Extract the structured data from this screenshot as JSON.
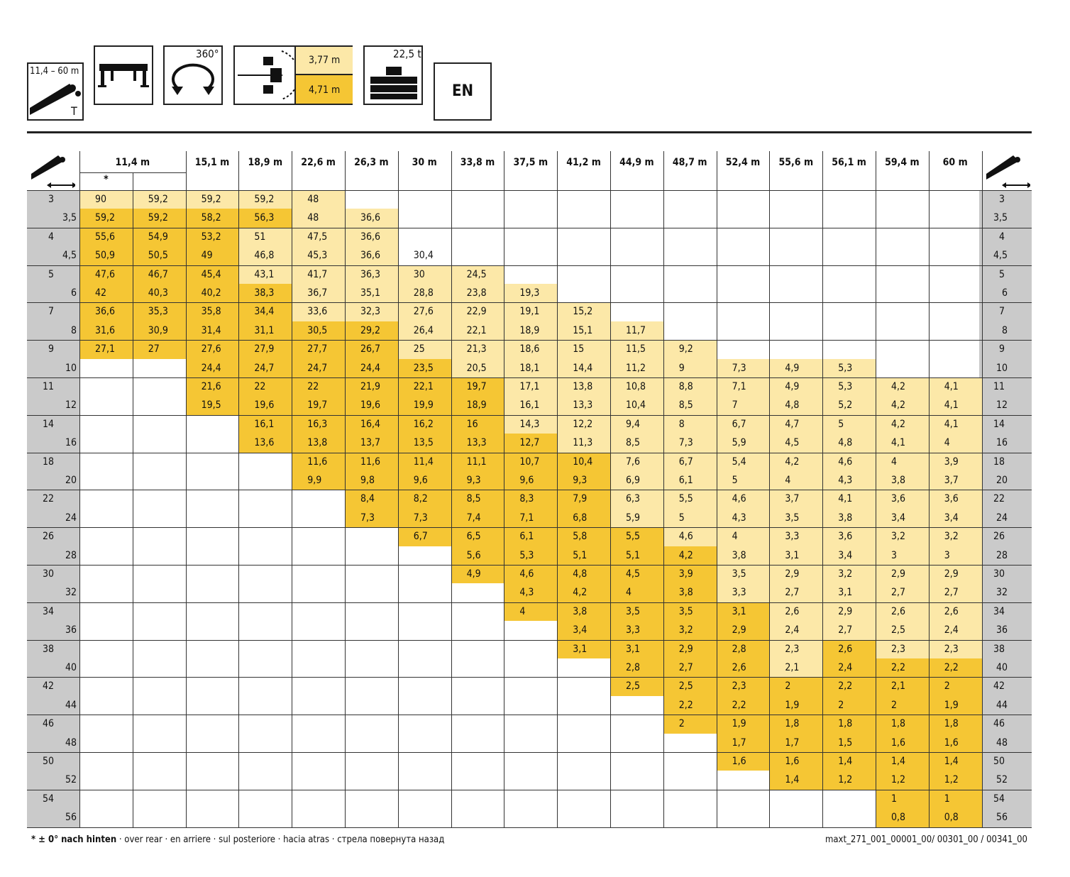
{
  "header_icons": {
    "boom_range": "11,4 – 60 m",
    "boom_tag": "T",
    "slew": "360°",
    "counterweight_top": "3,77 m",
    "counterweight_bottom": "4,71 m",
    "ballast": "22,5 t",
    "language": "EN"
  },
  "colors": {
    "yellow": "#F5C634",
    "lightyellow": "#FCE8A8",
    "gray": "#CACACA"
  },
  "table": {
    "boom_lengths": [
      "11,4 m",
      "15,1 m",
      "18,9 m",
      "22,6 m",
      "26,3 m",
      "30 m",
      "33,8 m",
      "37,5 m",
      "41,2 m",
      "44,9 m",
      "48,7 m",
      "52,4 m",
      "55,6 m",
      "56,1 m",
      "59,4 m",
      "60 m"
    ],
    "star_note": "*",
    "radii": [
      "3",
      "3,5",
      "4",
      "4,5",
      "5",
      "6",
      "7",
      "8",
      "9",
      "10",
      "11",
      "12",
      "14",
      "16",
      "18",
      "20",
      "22",
      "24",
      "26",
      "28",
      "30",
      "32",
      "34",
      "36",
      "38",
      "40",
      "42",
      "44",
      "46",
      "48",
      "50",
      "52",
      "54",
      "56"
    ],
    "rows": [
      [
        "90",
        "59,2",
        "59,2",
        "59,2",
        "48",
        "",
        "",
        "",
        "",
        "",
        "",
        "",
        "",
        "",
        "",
        "",
        ""
      ],
      [
        "59,2",
        "59,2",
        "58,2",
        "56,3",
        "48",
        "36,6",
        "",
        "",
        "",
        "",
        "",
        "",
        "",
        "",
        "",
        "",
        ""
      ],
      [
        "55,6",
        "54,9",
        "53,2",
        "51",
        "47,5",
        "36,6",
        "",
        "",
        "",
        "",
        "",
        "",
        "",
        "",
        "",
        "",
        ""
      ],
      [
        "50,9",
        "50,5",
        "49",
        "46,8",
        "45,3",
        "36,6",
        "30,4",
        "",
        "",
        "",
        "",
        "",
        "",
        "",
        "",
        "",
        ""
      ],
      [
        "47,6",
        "46,7",
        "45,4",
        "43,1",
        "41,7",
        "36,3",
        "30",
        "24,5",
        "",
        "",
        "",
        "",
        "",
        "",
        "",
        "",
        ""
      ],
      [
        "42",
        "40,3",
        "40,2",
        "38,3",
        "36,7",
        "35,1",
        "28,8",
        "23,8",
        "19,3",
        "",
        "",
        "",
        "",
        "",
        "",
        "",
        ""
      ],
      [
        "36,6",
        "35,3",
        "35,8",
        "34,4",
        "33,6",
        "32,3",
        "27,6",
        "22,9",
        "19,1",
        "15,2",
        "",
        "",
        "",
        "",
        "",
        "",
        ""
      ],
      [
        "31,6",
        "30,9",
        "31,4",
        "31,1",
        "30,5",
        "29,2",
        "26,4",
        "22,1",
        "18,9",
        "15,1",
        "11,7",
        "",
        "",
        "",
        "",
        "",
        ""
      ],
      [
        "27,1",
        "27",
        "27,6",
        "27,9",
        "27,7",
        "26,7",
        "25",
        "21,3",
        "18,6",
        "15",
        "11,5",
        "9,2",
        "",
        "",
        "",
        "",
        ""
      ],
      [
        "",
        "",
        "24,4",
        "24,7",
        "24,7",
        "24,4",
        "23,5",
        "20,5",
        "18,1",
        "14,4",
        "11,2",
        "9",
        "7,3",
        "4,9",
        "5,3",
        "",
        ""
      ],
      [
        "",
        "",
        "21,6",
        "22",
        "22",
        "21,9",
        "22,1",
        "19,7",
        "17,1",
        "13,8",
        "10,8",
        "8,8",
        "7,1",
        "4,9",
        "5,3",
        "4,2",
        "4,1"
      ],
      [
        "",
        "",
        "19,5",
        "19,6",
        "19,7",
        "19,6",
        "19,9",
        "18,9",
        "16,1",
        "13,3",
        "10,4",
        "8,5",
        "7",
        "4,8",
        "5,2",
        "4,2",
        "4,1"
      ],
      [
        "",
        "",
        "",
        "16,1",
        "16,3",
        "16,4",
        "16,2",
        "16",
        "14,3",
        "12,2",
        "9,4",
        "8",
        "6,7",
        "4,7",
        "5",
        "4,2",
        "4,1"
      ],
      [
        "",
        "",
        "",
        "13,6",
        "13,8",
        "13,7",
        "13,5",
        "13,3",
        "12,7",
        "11,3",
        "8,5",
        "7,3",
        "5,9",
        "4,5",
        "4,8",
        "4,1",
        "4"
      ],
      [
        "",
        "",
        "",
        "",
        "11,6",
        "11,6",
        "11,4",
        "11,1",
        "10,7",
        "10,4",
        "7,6",
        "6,7",
        "5,4",
        "4,2",
        "4,6",
        "4",
        "3,9"
      ],
      [
        "",
        "",
        "",
        "",
        "9,9",
        "9,8",
        "9,6",
        "9,3",
        "9,6",
        "9,3",
        "6,9",
        "6,1",
        "5",
        "4",
        "4,3",
        "3,8",
        "3,7"
      ],
      [
        "",
        "",
        "",
        "",
        "",
        "8,4",
        "8,2",
        "8,5",
        "8,3",
        "7,9",
        "6,3",
        "5,5",
        "4,6",
        "3,7",
        "4,1",
        "3,6",
        "3,6"
      ],
      [
        "",
        "",
        "",
        "",
        "",
        "7,3",
        "7,3",
        "7,4",
        "7,1",
        "6,8",
        "5,9",
        "5",
        "4,3",
        "3,5",
        "3,8",
        "3,4",
        "3,4"
      ],
      [
        "",
        "",
        "",
        "",
        "",
        "",
        "6,7",
        "6,5",
        "6,1",
        "5,8",
        "5,5",
        "4,6",
        "4",
        "3,3",
        "3,6",
        "3,2",
        "3,2"
      ],
      [
        "",
        "",
        "",
        "",
        "",
        "",
        "",
        "5,6",
        "5,3",
        "5,1",
        "5,1",
        "4,2",
        "3,8",
        "3,1",
        "3,4",
        "3",
        "3"
      ],
      [
        "",
        "",
        "",
        "",
        "",
        "",
        "",
        "4,9",
        "4,6",
        "4,8",
        "4,5",
        "3,9",
        "3,5",
        "2,9",
        "3,2",
        "2,9",
        "2,9"
      ],
      [
        "",
        "",
        "",
        "",
        "",
        "",
        "",
        "",
        "4,3",
        "4,2",
        "4",
        "3,8",
        "3,3",
        "2,7",
        "3,1",
        "2,7",
        "2,7"
      ],
      [
        "",
        "",
        "",
        "",
        "",
        "",
        "",
        "",
        "4",
        "3,8",
        "3,5",
        "3,5",
        "3,1",
        "2,6",
        "2,9",
        "2,6",
        "2,6"
      ],
      [
        "",
        "",
        "",
        "",
        "",
        "",
        "",
        "",
        "",
        "3,4",
        "3,3",
        "3,2",
        "2,9",
        "2,4",
        "2,7",
        "2,5",
        "2,4"
      ],
      [
        "",
        "",
        "",
        "",
        "",
        "",
        "",
        "",
        "",
        "3,1",
        "3,1",
        "2,9",
        "2,8",
        "2,3",
        "2,6",
        "2,3",
        "2,3"
      ],
      [
        "",
        "",
        "",
        "",
        "",
        "",
        "",
        "",
        "",
        "",
        "2,8",
        "2,7",
        "2,6",
        "2,1",
        "2,4",
        "2,2",
        "2,2"
      ],
      [
        "",
        "",
        "",
        "",
        "",
        "",
        "",
        "",
        "",
        "",
        "2,5",
        "2,5",
        "2,3",
        "2",
        "2,2",
        "2,1",
        "2"
      ],
      [
        "",
        "",
        "",
        "",
        "",
        "",
        "",
        "",
        "",
        "",
        "",
        "2,2",
        "2,2",
        "1,9",
        "2",
        "2",
        "1,9"
      ],
      [
        "",
        "",
        "",
        "",
        "",
        "",
        "",
        "",
        "",
        "",
        "",
        "2",
        "1,9",
        "1,8",
        "1,8",
        "1,8",
        "1,8"
      ],
      [
        "",
        "",
        "",
        "",
        "",
        "",
        "",
        "",
        "",
        "",
        "",
        "",
        "1,7",
        "1,7",
        "1,5",
        "1,6",
        "1,6"
      ],
      [
        "",
        "",
        "",
        "",
        "",
        "",
        "",
        "",
        "",
        "",
        "",
        "",
        "1,6",
        "1,6",
        "1,4",
        "1,4",
        "1,4"
      ],
      [
        "",
        "",
        "",
        "",
        "",
        "",
        "",
        "",
        "",
        "",
        "",
        "",
        "",
        "1,4",
        "1,2",
        "1,2",
        "1,2"
      ],
      [
        "",
        "",
        "",
        "",
        "",
        "",
        "",
        "",
        "",
        "",
        "",
        "",
        "",
        "",
        "",
        "1",
        "1"
      ],
      [
        "",
        "",
        "",
        "",
        "",
        "",
        "",
        "",
        "",
        "",
        "",
        "",
        "",
        "",
        "",
        "0,8",
        "0,8"
      ]
    ],
    "shade": [
      "LLLLL............",
      "YYYYLL...........",
      "YYYLLL...........",
      "YYYLLL...........",
      "YYYLLLLL.........",
      "YYYYLLLLL........",
      "YYYYLLLLLL.......",
      "YYYYYYLLLLL......",
      "YYYYYYLLLLLL.....",
      "..YYYYYLLLLLLLL..",
      "..YYYYYYLLLLLLLLL",
      "..YYYYYYLLLLLLLLL",
      "...YYYYYLLLLLLLLL",
      "...YYYYYYLLLLLLLL",
      "....YYYYYYLLLLLLL",
      "....YYYYYYLLLLLLL",
      ".....YYYYYLLLLLLL",
      ".....YYYYYLLLLLLL",
      "......YYYYYLLLLLL",
      ".......YYYYYLLLLL",
      ".......YYYYYLLLLL",
      "........YYYYLLLLL",
      "........YYYYYLLLL",
      ".........YYYYLLLL",
      ".........YYYYLYLL",
      "..........YYYLYYY",
      "..........YYYYYYY",
      "...........YYYYYY",
      "...........YYYYYY",
      "............YYYYY",
      "............YYYYY",
      ".............YYYY",
      "...............YY",
      "...............YY"
    ]
  },
  "footer": {
    "note_bold": "* ± 0° nach hinten",
    "note_rest": " · over rear · en arriere · sul posteriore · hacia atras · стрела повернута назад",
    "doc_id": "maxt_271_001_00001_00/ 00301_00 / 00341_00"
  }
}
